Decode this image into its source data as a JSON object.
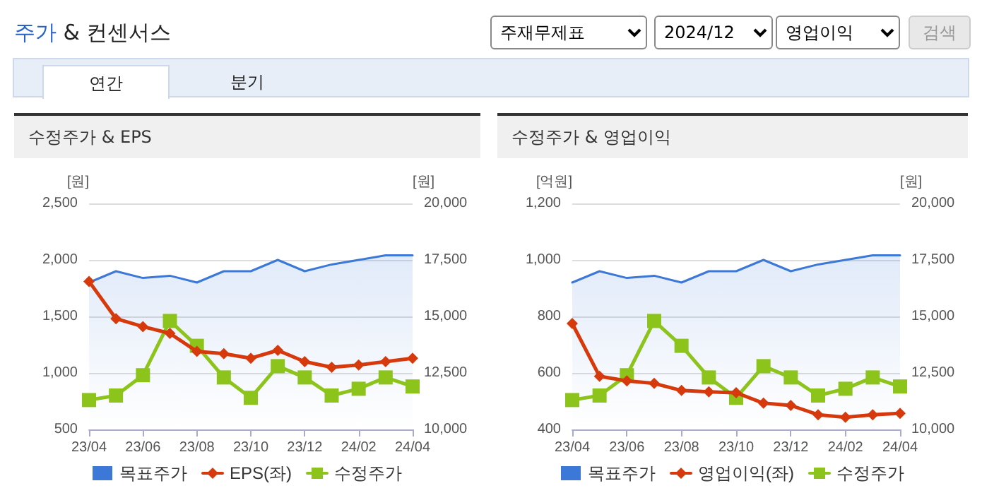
{
  "chart_data": [
    {
      "type": "other",
      "title": "주가 & 컨센서스",
      "annotations": [
        "주재무제표",
        "2024/12",
        "영업이익",
        "검색",
        "연간",
        "분기"
      ]
    },
    {
      "type": "line",
      "title": "수정주가 & EPS",
      "ylabel": "[원]",
      "y2label": "[원]",
      "categories": [
        "23/04",
        null,
        "23/06",
        null,
        "23/08",
        null,
        "23/10",
        null,
        "23/12",
        null,
        "24/02",
        null,
        "24/04"
      ],
      "series": [
        {
          "name": "목표주가",
          "type": "area",
          "axis": "y2",
          "marker": "none",
          "color": "#3b78d8",
          "values": [
            16500,
            17000,
            16700,
            16800,
            16500,
            17000,
            17000,
            17500,
            17000,
            17300,
            17500,
            17700,
            17700
          ]
        },
        {
          "name": "EPS(좌)",
          "type": "line",
          "marker": "diamond",
          "color": "#d63a0c",
          "values": [
            1810,
            1480,
            1410,
            1350,
            1190,
            1170,
            1130,
            1200,
            1100,
            1050,
            1070,
            1100,
            1130
          ]
        },
        {
          "name": "수정주가",
          "type": "line",
          "axis": "y2",
          "marker": "square",
          "color": "#8cc41c",
          "values": [
            11300,
            11500,
            12400,
            14800,
            13700,
            12300,
            11400,
            12800,
            12300,
            11500,
            11800,
            12300,
            11900
          ]
        }
      ],
      "ylim": [
        500,
        2500
      ],
      "yticks": [
        500,
        {
          "value": 1000,
          "label": "1,000"
        },
        {
          "value": 1500,
          "label": "1,500"
        },
        {
          "value": 2000,
          "label": "2,000"
        },
        {
          "value": 2500,
          "label": "2,500"
        }
      ],
      "y2lim": [
        10000,
        20000
      ],
      "y2ticks": [
        {
          "value": 10000,
          "label": "10,000"
        },
        {
          "value": 12500,
          "label": "12,500"
        },
        {
          "value": 15000,
          "label": "15,000"
        },
        {
          "value": 17500,
          "label": "17,500"
        },
        {
          "value": 20000,
          "label": "20,000"
        }
      ],
      "grid": "y",
      "legend": "bottom"
    },
    {
      "type": "line",
      "title": "수정주가 & 영업이익",
      "ylabel": "[억원]",
      "y2label": "[원]",
      "categories": [
        "23/04",
        null,
        "23/06",
        null,
        "23/08",
        null,
        "23/10",
        null,
        "23/12",
        null,
        "24/02",
        null,
        "24/04"
      ],
      "series": [
        {
          "name": "목표주가",
          "type": "area",
          "axis": "y2",
          "marker": "none",
          "color": "#3b78d8",
          "values": [
            16500,
            17000,
            16700,
            16800,
            16500,
            17000,
            17000,
            17500,
            17000,
            17300,
            17500,
            17700,
            17700
          ]
        },
        {
          "name": "영업이익(좌)",
          "type": "line",
          "marker": "diamond",
          "color": "#d63a0c",
          "values": [
            775,
            588,
            572,
            563,
            538,
            533,
            530,
            493,
            485,
            452,
            443,
            452,
            457
          ]
        },
        {
          "name": "수정주가",
          "type": "line",
          "axis": "y2",
          "marker": "square",
          "color": "#8cc41c",
          "values": [
            11300,
            11500,
            12400,
            14800,
            13700,
            12300,
            11400,
            12800,
            12300,
            11500,
            11800,
            12300,
            11900
          ]
        }
      ],
      "ylim": [
        400,
        1200
      ],
      "yticks": [
        400,
        600,
        800,
        {
          "value": 1000,
          "label": "1,000"
        },
        {
          "value": 1200,
          "label": "1,200"
        }
      ],
      "y2lim": [
        10000,
        20000
      ],
      "y2ticks": [
        {
          "value": 10000,
          "label": "10,000"
        },
        {
          "value": 12500,
          "label": "12,500"
        },
        {
          "value": 15000,
          "label": "15,000"
        },
        {
          "value": 17500,
          "label": "17,500"
        },
        {
          "value": 20000,
          "label": "20,000"
        }
      ],
      "grid": "y",
      "legend": "bottom"
    }
  ]
}
